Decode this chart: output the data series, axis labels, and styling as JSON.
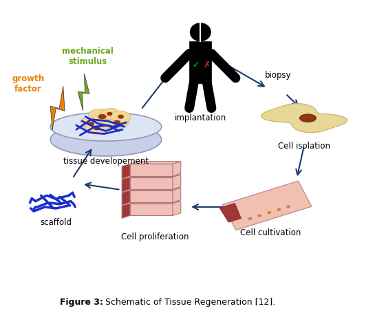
{
  "title": "Figure 3:",
  "title_suffix": " Schematic of Tissue Regeneration [12].",
  "bg_color": "#ffffff",
  "labels": {
    "growth_factor": "growth\nfactor",
    "mechanical_stimulus": "mechanical\nstimulus",
    "tissue_dev": "tissue developement",
    "implantation": "implantation",
    "biopsy": "biopsy",
    "cell_isolation": "Cell isolation",
    "cell_cultivation": "Cell cultivation",
    "cell_proliferation": "Cell proliferation",
    "scaffold": "scaffold"
  },
  "colors": {
    "growth_factor": "#e8820a",
    "mechanical_stimulus": "#6aaa1e",
    "arrow": "#1a3a6b",
    "petri_rim": "#b8c4dc",
    "petri_fill": "#dde4f4",
    "petri_shadow": "#c8cfe8",
    "cell_blob": "#f0d898",
    "cell_blob_outline": "#d4bb70",
    "fiber": "#1a2ecc",
    "scaffold_color": "#1a2ecc",
    "nucleus": "#aa3300",
    "biopsy_cell": "#e8d898",
    "biopsy_nucleus": "#8b3a10",
    "flask_body": "#f2c0b0",
    "flask_neck": "#a03838",
    "block_face": "#f0c0b8",
    "block_edge": "#b07878",
    "block_tab": "#a03838"
  }
}
